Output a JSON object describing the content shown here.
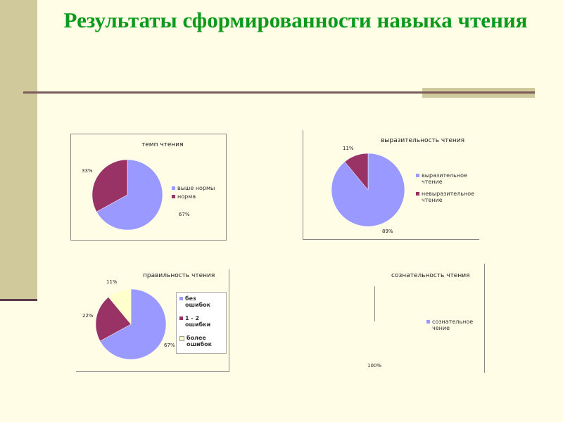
{
  "slide": {
    "title": "Результаты сформированности  навыка чтения"
  },
  "colors": {
    "blue": "#9999ff",
    "maroon": "#993366",
    "cream": "#ffffcc",
    "title_green": "#0b9a1b",
    "sidebar": "#cfc99b"
  },
  "chart_data": [
    {
      "type": "pie",
      "title": "темп чтения",
      "categories": [
        "выше нормы",
        "норма"
      ],
      "values": [
        67,
        33
      ],
      "labels": [
        "67%",
        "33%"
      ],
      "colors": [
        "#9999ff",
        "#993366"
      ],
      "legend": "right"
    },
    {
      "type": "pie",
      "title": "выразительность чтения",
      "categories": [
        "выразительное чтение",
        "невыразительное чтение"
      ],
      "values": [
        89,
        11
      ],
      "labels": [
        "89%",
        "11%"
      ],
      "colors": [
        "#9999ff",
        "#993366"
      ],
      "legend": "right"
    },
    {
      "type": "pie",
      "title": "правильность чтения",
      "categories": [
        "без ошибок",
        "1 - 2 ошибки",
        "более ошибок"
      ],
      "values": [
        67,
        22,
        11
      ],
      "labels": [
        "67%",
        "22%",
        "11%"
      ],
      "colors": [
        "#9999ff",
        "#993366",
        "#ffffcc"
      ],
      "legend": "right"
    },
    {
      "type": "pie",
      "title": "сознательность чтения",
      "categories": [
        "сознательное чение"
      ],
      "values": [
        100
      ],
      "labels": [
        "100%"
      ],
      "colors": [
        "#9999ff"
      ],
      "legend": "right"
    }
  ]
}
